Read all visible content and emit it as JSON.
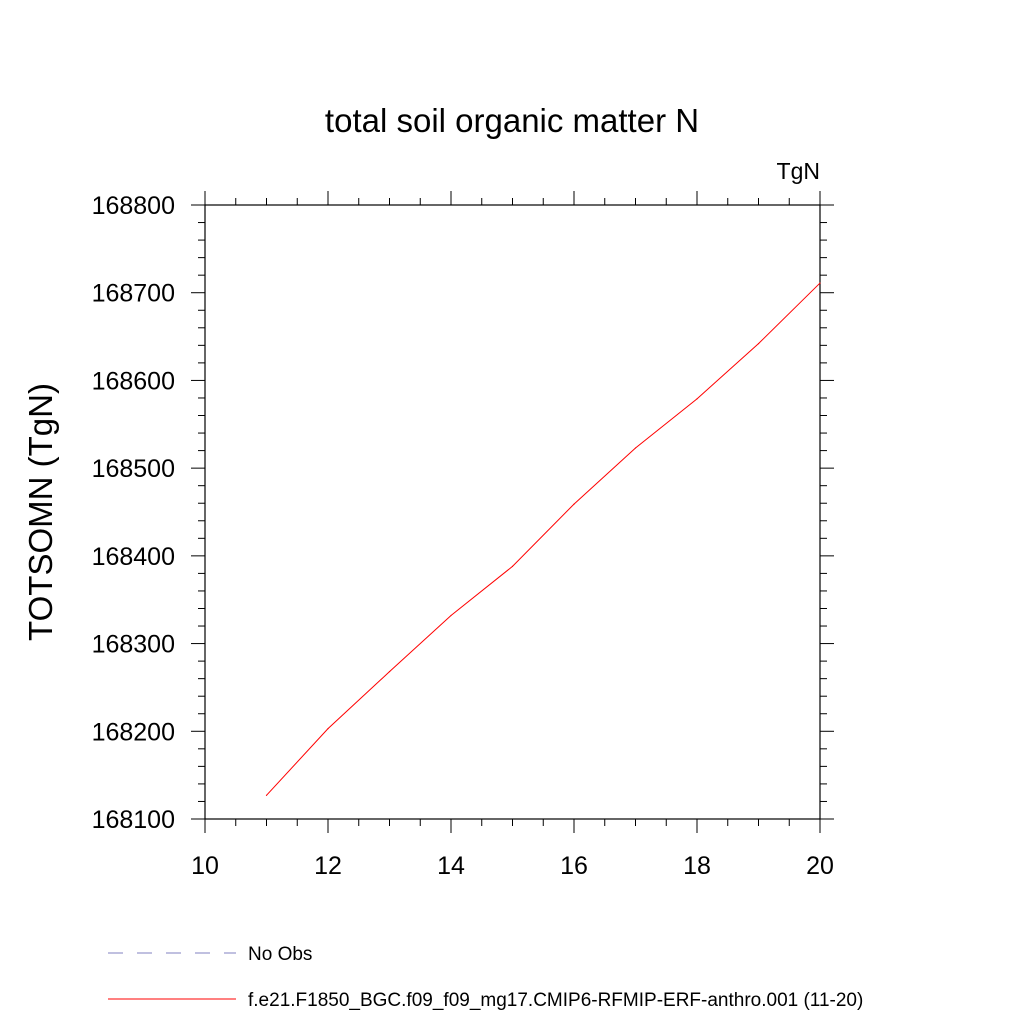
{
  "chart_data": {
    "type": "line",
    "title": "total soil organic matter N",
    "units_label": "TgN",
    "xlabel": "",
    "ylabel": "TOTSOMN  (TgN)",
    "xlim": [
      10,
      20
    ],
    "ylim": [
      168100,
      168800
    ],
    "x_ticks": [
      10,
      12,
      14,
      16,
      18,
      20
    ],
    "x_tick_labels": [
      "10",
      "12",
      "14",
      "16",
      "18",
      "20"
    ],
    "y_ticks": [
      168100,
      168200,
      168300,
      168400,
      168500,
      168600,
      168700,
      168800
    ],
    "y_tick_labels": [
      "168100",
      "168200",
      "168300",
      "168400",
      "168500",
      "168600",
      "168700",
      "168800"
    ],
    "grid": false,
    "legend_position": "bottom",
    "series": [
      {
        "name": "f.e21.F1850_BGC.f09_f09_mg17.CMIP6-RFMIP-ERF-anthro.001 (11-20)",
        "color": "#ff0000",
        "style": "solid",
        "x": [
          11,
          12,
          13,
          14,
          15,
          16,
          17,
          18,
          19,
          20
        ],
        "y": [
          168127,
          168203,
          168268,
          168332,
          168388,
          168459,
          168523,
          168579,
          168642,
          168711
        ]
      }
    ],
    "legend": [
      {
        "label": "No Obs",
        "color": "#8080c0",
        "style": "dashed"
      },
      {
        "label": "f.e21.F1850_BGC.f09_f09_mg17.CMIP6-RFMIP-ERF-anthro.001 (11-20)",
        "color": "#ff0000",
        "style": "solid"
      }
    ]
  }
}
